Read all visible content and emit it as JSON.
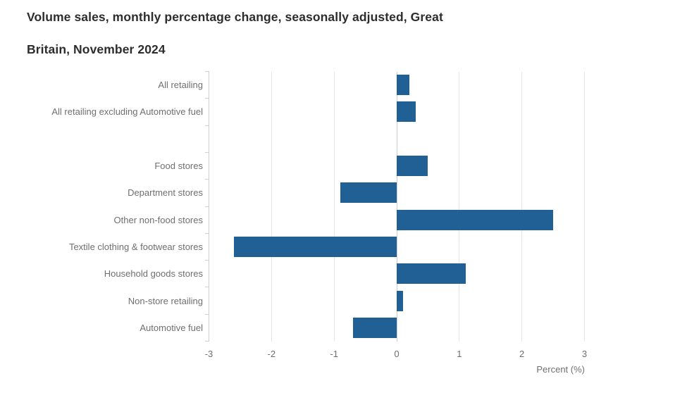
{
  "title": {
    "line1": "Volume sales, monthly percentage change, seasonally adjusted, Great",
    "line2": "Britain, November 2024"
  },
  "chart_data": {
    "type": "bar",
    "orientation": "horizontal",
    "title": "Volume sales, monthly percentage change, seasonally adjusted, Great Britain, November 2024",
    "xlabel": "Percent (%)",
    "categories": [
      "All retailing",
      "All retailing excluding Automotive fuel",
      "",
      "Food stores",
      "Department stores",
      "Other non-food stores",
      "Textile clothing & footwear stores",
      "Household goods stores",
      "Non-store retailing",
      "Automotive fuel"
    ],
    "values": [
      0.2,
      0.3,
      null,
      0.5,
      -0.9,
      2.5,
      -2.6,
      1.1,
      0.1,
      -0.7
    ],
    "xlim": [
      -3,
      3
    ],
    "x_ticks": [
      -3,
      -2,
      -1,
      0,
      1,
      2,
      3
    ],
    "grid": true,
    "legend": false,
    "colors": {
      "bar": "#206095",
      "gridline": "#e4e6e8",
      "zero_line": "#c9cdd0",
      "axis_line": "#ccd3d8",
      "label_text": "#6f6f6f",
      "title_text": "#2d2d2d"
    }
  }
}
